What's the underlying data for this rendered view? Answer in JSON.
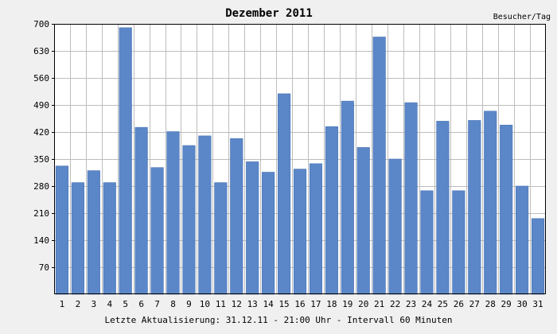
{
  "chart_data": {
    "type": "bar",
    "title": "Dezember 2011",
    "unit_label": "Besucher/Tag",
    "footer": "Letzte Aktualisierung: 31.12.11 - 21:00 Uhr - Intervall 60 Minuten",
    "categories": [
      "1",
      "2",
      "3",
      "4",
      "5",
      "6",
      "7",
      "8",
      "9",
      "10",
      "11",
      "12",
      "13",
      "14",
      "15",
      "16",
      "17",
      "18",
      "19",
      "20",
      "21",
      "22",
      "23",
      "24",
      "25",
      "26",
      "27",
      "28",
      "29",
      "30",
      "31"
    ],
    "values": [
      332,
      289,
      320,
      289,
      690,
      432,
      328,
      421,
      385,
      410,
      289,
      403,
      343,
      316,
      519,
      324,
      338,
      434,
      500,
      380,
      666,
      350,
      496,
      268,
      448,
      268,
      450,
      474,
      438,
      280,
      196
    ],
    "y_ticks": [
      70,
      140,
      210,
      280,
      350,
      420,
      490,
      560,
      630,
      700
    ],
    "ylim": [
      0,
      700
    ],
    "grid": true,
    "colors": {
      "bar": "#5b87c8",
      "bar_edge": "#4a74b4",
      "grid": "#bdbdbd",
      "axis": "#000000",
      "plot_background": "#ffffff",
      "page_background": "#f0f0f0"
    }
  }
}
